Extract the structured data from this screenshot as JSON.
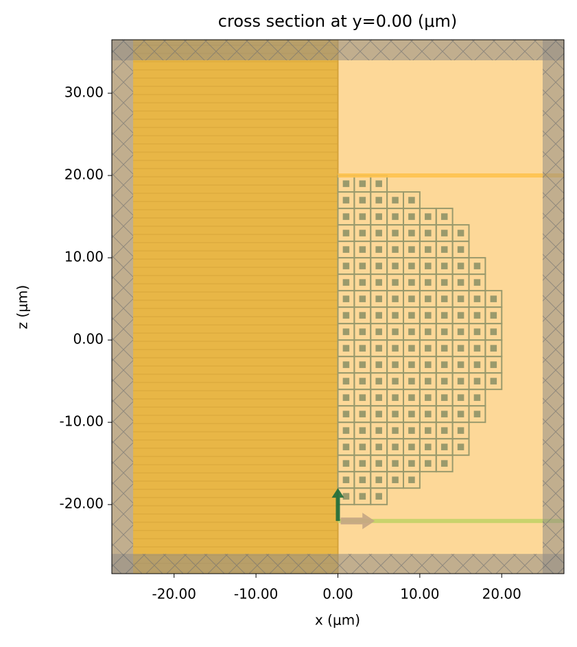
{
  "chart_data": {
    "type": "structure",
    "title": "cross section at y=0.00 (μm)",
    "x_label": "x (μm)",
    "y_label": "z (μm)",
    "xlim": [
      -27.6,
      27.6
    ],
    "ylim": [
      -28.4,
      36.5
    ],
    "xticks": [
      {
        "value": -20,
        "label": "-20.00"
      },
      {
        "value": -10,
        "label": "-10.00"
      },
      {
        "value": 0,
        "label": "0.00"
      },
      {
        "value": 10,
        "label": "10.00"
      },
      {
        "value": 20,
        "label": "20.00"
      }
    ],
    "yticks": [
      {
        "value": -20,
        "label": "-20.00"
      },
      {
        "value": -10,
        "label": "-10.00"
      },
      {
        "value": 0,
        "label": "0.00"
      },
      {
        "value": 10,
        "label": "10.00"
      },
      {
        "value": 20,
        "label": "20.00"
      },
      {
        "value": 30,
        "label": "30.00"
      }
    ],
    "slab": {
      "x": [
        -25,
        0
      ],
      "color": "#e8b646"
    },
    "lattice": {
      "x0": 0,
      "z0": -20,
      "pitch": 2,
      "row_lengths": [
        3,
        5,
        7,
        8,
        8,
        9,
        9,
        10,
        10,
        10,
        10,
        10,
        10,
        9,
        9,
        8,
        8,
        7,
        5,
        3
      ],
      "color": "#9a9a6c"
    },
    "monitor": {
      "z": 20,
      "x0": 0,
      "color": "#ffc44e"
    },
    "source": {
      "z": -22,
      "x0": 0,
      "color": "#c9d36c",
      "polarization_length": 4,
      "polarization_color": "#1c6b3a",
      "direction_length": 4.5,
      "direction_color": "#c4a684"
    },
    "pml": {
      "x": [
        -25,
        25
      ],
      "z": [
        -26,
        34
      ],
      "color": "#8f8c86"
    }
  }
}
